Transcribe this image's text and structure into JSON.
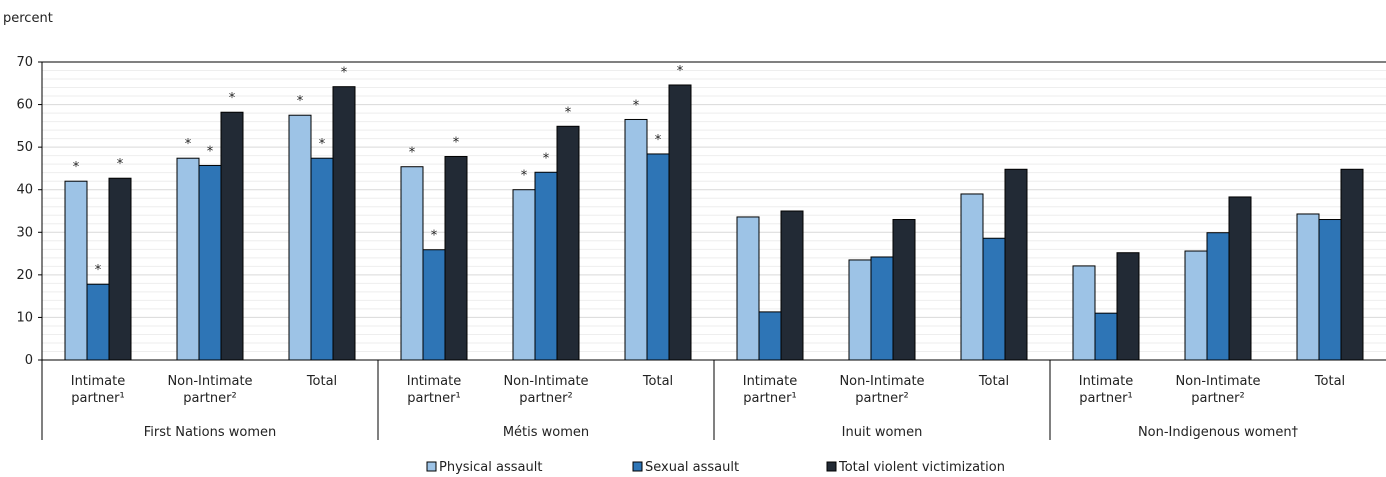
{
  "chart_data": {
    "type": "bar",
    "ylabel": "percent",
    "ylim": [
      0,
      70
    ],
    "yticks": [
      0,
      10,
      20,
      30,
      40,
      50,
      60,
      70
    ],
    "grid": "horizontal",
    "legend_position": "bottom",
    "groups": [
      {
        "label": "First Nations women",
        "categories": [
          {
            "lines": [
              "Intimate",
              "partner¹"
            ]
          },
          {
            "lines": [
              "Non-Intimate",
              "partner²"
            ]
          },
          {
            "lines": [
              "Total"
            ]
          }
        ]
      },
      {
        "label": "Métis women",
        "categories": [
          {
            "lines": [
              "Intimate",
              "partner¹"
            ]
          },
          {
            "lines": [
              "Non-Intimate",
              "partner²"
            ]
          },
          {
            "lines": [
              "Total"
            ]
          }
        ]
      },
      {
        "label": "Inuit women",
        "categories": [
          {
            "lines": [
              "Intimate",
              "partner¹"
            ]
          },
          {
            "lines": [
              "Non-Intimate",
              "partner²"
            ]
          },
          {
            "lines": [
              "Total"
            ]
          }
        ]
      },
      {
        "label": "Non-Indigenous women†",
        "categories": [
          {
            "lines": [
              "Intimate",
              "partner¹"
            ]
          },
          {
            "lines": [
              "Non-Intimate",
              "partner²"
            ]
          },
          {
            "lines": [
              "Total"
            ]
          }
        ]
      }
    ],
    "significance_marker": "*",
    "series": [
      {
        "name": "Physical assault",
        "color": "#9dc3e6",
        "values": [
          42,
          47.4,
          57.5,
          45.4,
          40,
          56.5,
          33.6,
          23.5,
          39,
          22.1,
          25.6,
          34.3
        ],
        "significant": [
          true,
          true,
          true,
          true,
          true,
          true,
          false,
          false,
          false,
          false,
          false,
          false
        ]
      },
      {
        "name": "Sexual assault",
        "color": "#2e75b6",
        "values": [
          17.8,
          45.7,
          47.4,
          25.9,
          44.1,
          48.4,
          11.3,
          24.2,
          28.6,
          11,
          29.9,
          33
        ],
        "significant": [
          true,
          true,
          true,
          true,
          true,
          true,
          false,
          false,
          false,
          false,
          false,
          false
        ]
      },
      {
        "name": "Total violent victimization",
        "color": "#222a35",
        "values": [
          42.7,
          58.2,
          64.2,
          47.8,
          54.9,
          64.6,
          35,
          33,
          44.8,
          25.2,
          38.3,
          44.8
        ],
        "significant": [
          true,
          true,
          true,
          true,
          true,
          true,
          false,
          false,
          false,
          false,
          false,
          false
        ]
      }
    ]
  }
}
